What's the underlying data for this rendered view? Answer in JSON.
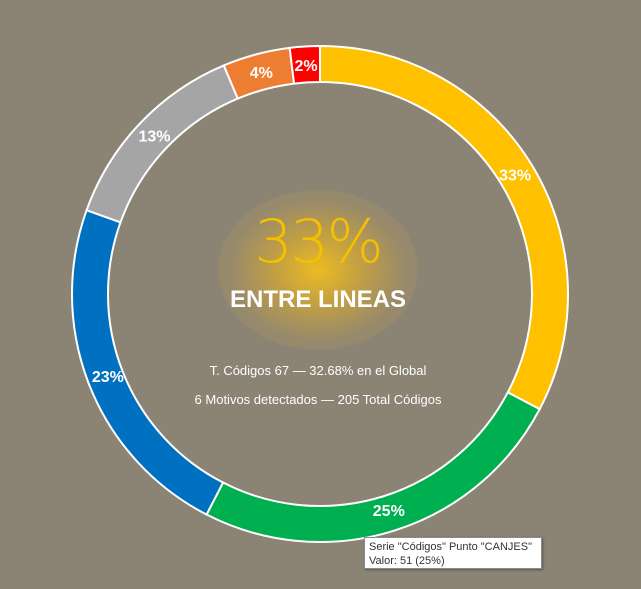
{
  "chart_data": {
    "type": "pie",
    "series_name": "Códigos",
    "categories": [
      "",
      "CANJES",
      "",
      "",
      "",
      ""
    ],
    "values": [
      67,
      51,
      47,
      27,
      9,
      4
    ],
    "percent_labels": [
      "33%",
      "25%",
      "23%",
      "13%",
      "4%",
      "2%"
    ],
    "colors": [
      "#ffc000",
      "#00b050",
      "#0070c0",
      "#a5a5a5",
      "#ed7d31",
      "#ff0000"
    ]
  },
  "center": {
    "percent": "33%",
    "title": "ENTRE LINEAS",
    "line1": "T. Códigos 67 — 32.68% en el Global",
    "line2": "6 Motivos detectados — 205 Total Códigos"
  },
  "tooltip": {
    "line1": "Serie \"Códigos\" Punto \"CANJES\"",
    "line2": "Valor: 51 (25%)"
  }
}
